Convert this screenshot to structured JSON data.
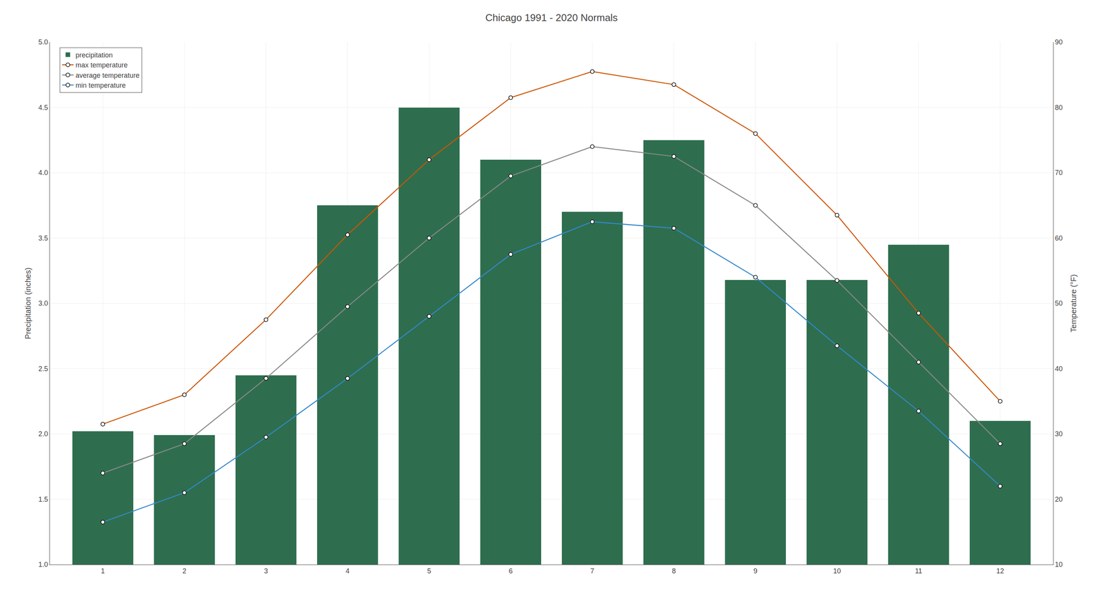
{
  "chart_data": {
    "type": "bar",
    "title": "Chicago 1991 - 2020 Normals",
    "x": [
      1,
      2,
      3,
      4,
      5,
      6,
      7,
      8,
      9,
      10,
      11,
      12
    ],
    "xlim": [
      0.35,
      12.65
    ],
    "xticks": [
      1,
      2,
      3,
      4,
      5,
      6,
      7,
      8,
      9,
      10,
      11,
      12
    ],
    "ylabel": "Precipitation (inches)",
    "y2label": "Temperature (°F)",
    "ylim": [
      1.0,
      5.0
    ],
    "yticks": [
      {
        "value": 1.0,
        "label": "1.0"
      },
      1.5,
      {
        "value": 2.0,
        "label": "2.0"
      },
      2.5,
      {
        "value": 3.0,
        "label": "3.0"
      },
      3.5,
      {
        "value": 4.0,
        "label": "4.0"
      },
      4.5,
      {
        "value": 5.0,
        "label": "5.0"
      }
    ],
    "y2lim": [
      10,
      90
    ],
    "y2ticks": [
      10,
      20,
      30,
      40,
      50,
      60,
      70,
      80,
      90
    ],
    "grid": true,
    "legend": "upper left",
    "series": [
      {
        "name": "precipitation",
        "type": "bar",
        "color": "#2e6e4e",
        "values": [
          2.02,
          1.99,
          2.45,
          3.75,
          4.5,
          4.1,
          3.7,
          4.25,
          3.18,
          3.18,
          3.45,
          2.1
        ]
      },
      {
        "name": "max temperature",
        "type": "line",
        "axis": "y2",
        "color": "#cc5500",
        "marker": "circle",
        "line_style": "solid",
        "values": [
          31.5,
          36.0,
          47.5,
          60.5,
          72.0,
          81.5,
          85.5,
          83.5,
          76.0,
          63.5,
          48.5,
          35.0
        ]
      },
      {
        "name": "average temperature",
        "type": "line",
        "axis": "y2",
        "color": "#888888",
        "marker": "circle",
        "line_style": "solid",
        "values": [
          24.0,
          28.5,
          38.5,
          49.5,
          60.0,
          69.5,
          74.0,
          72.5,
          65.0,
          53.5,
          41.0,
          28.5
        ]
      },
      {
        "name": "min temperature",
        "type": "line",
        "axis": "y2",
        "color": "#3388cc",
        "marker": "circle",
        "line_style": "solid",
        "values": [
          16.5,
          21.0,
          29.5,
          38.5,
          48.0,
          57.5,
          62.5,
          61.5,
          54.0,
          43.5,
          33.5,
          22.0
        ]
      }
    ]
  }
}
